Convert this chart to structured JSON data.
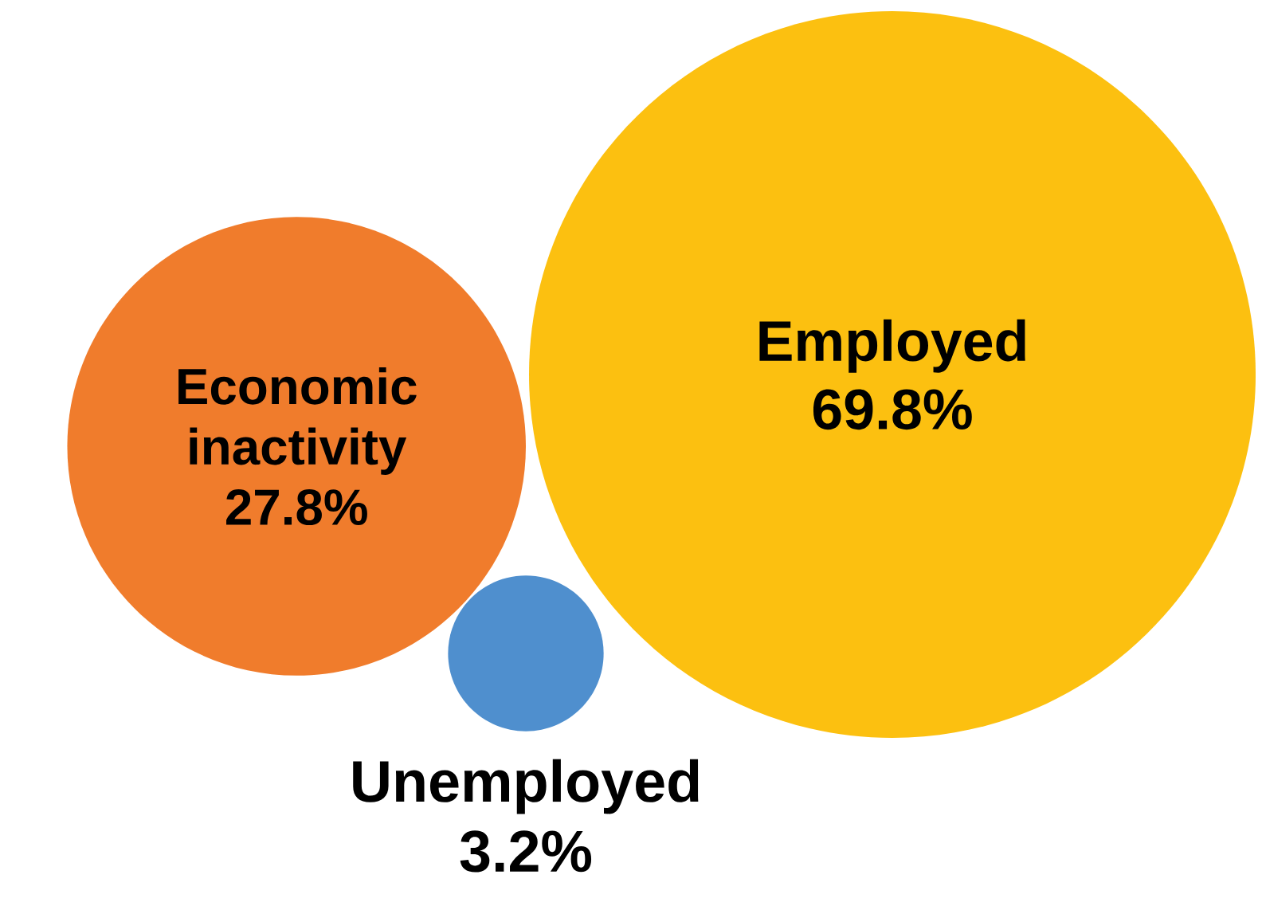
{
  "chart_data": {
    "type": "other",
    "categories": [
      "Economic inactivity",
      "Unemployed",
      "Employed"
    ],
    "values": [
      27.8,
      3.2,
      69.8
    ],
    "value_labels": [
      "27.8%",
      "3.2%",
      "69.8%"
    ],
    "colors": [
      "#f07c2c",
      "#4f8fce",
      "#fcc010"
    ]
  }
}
